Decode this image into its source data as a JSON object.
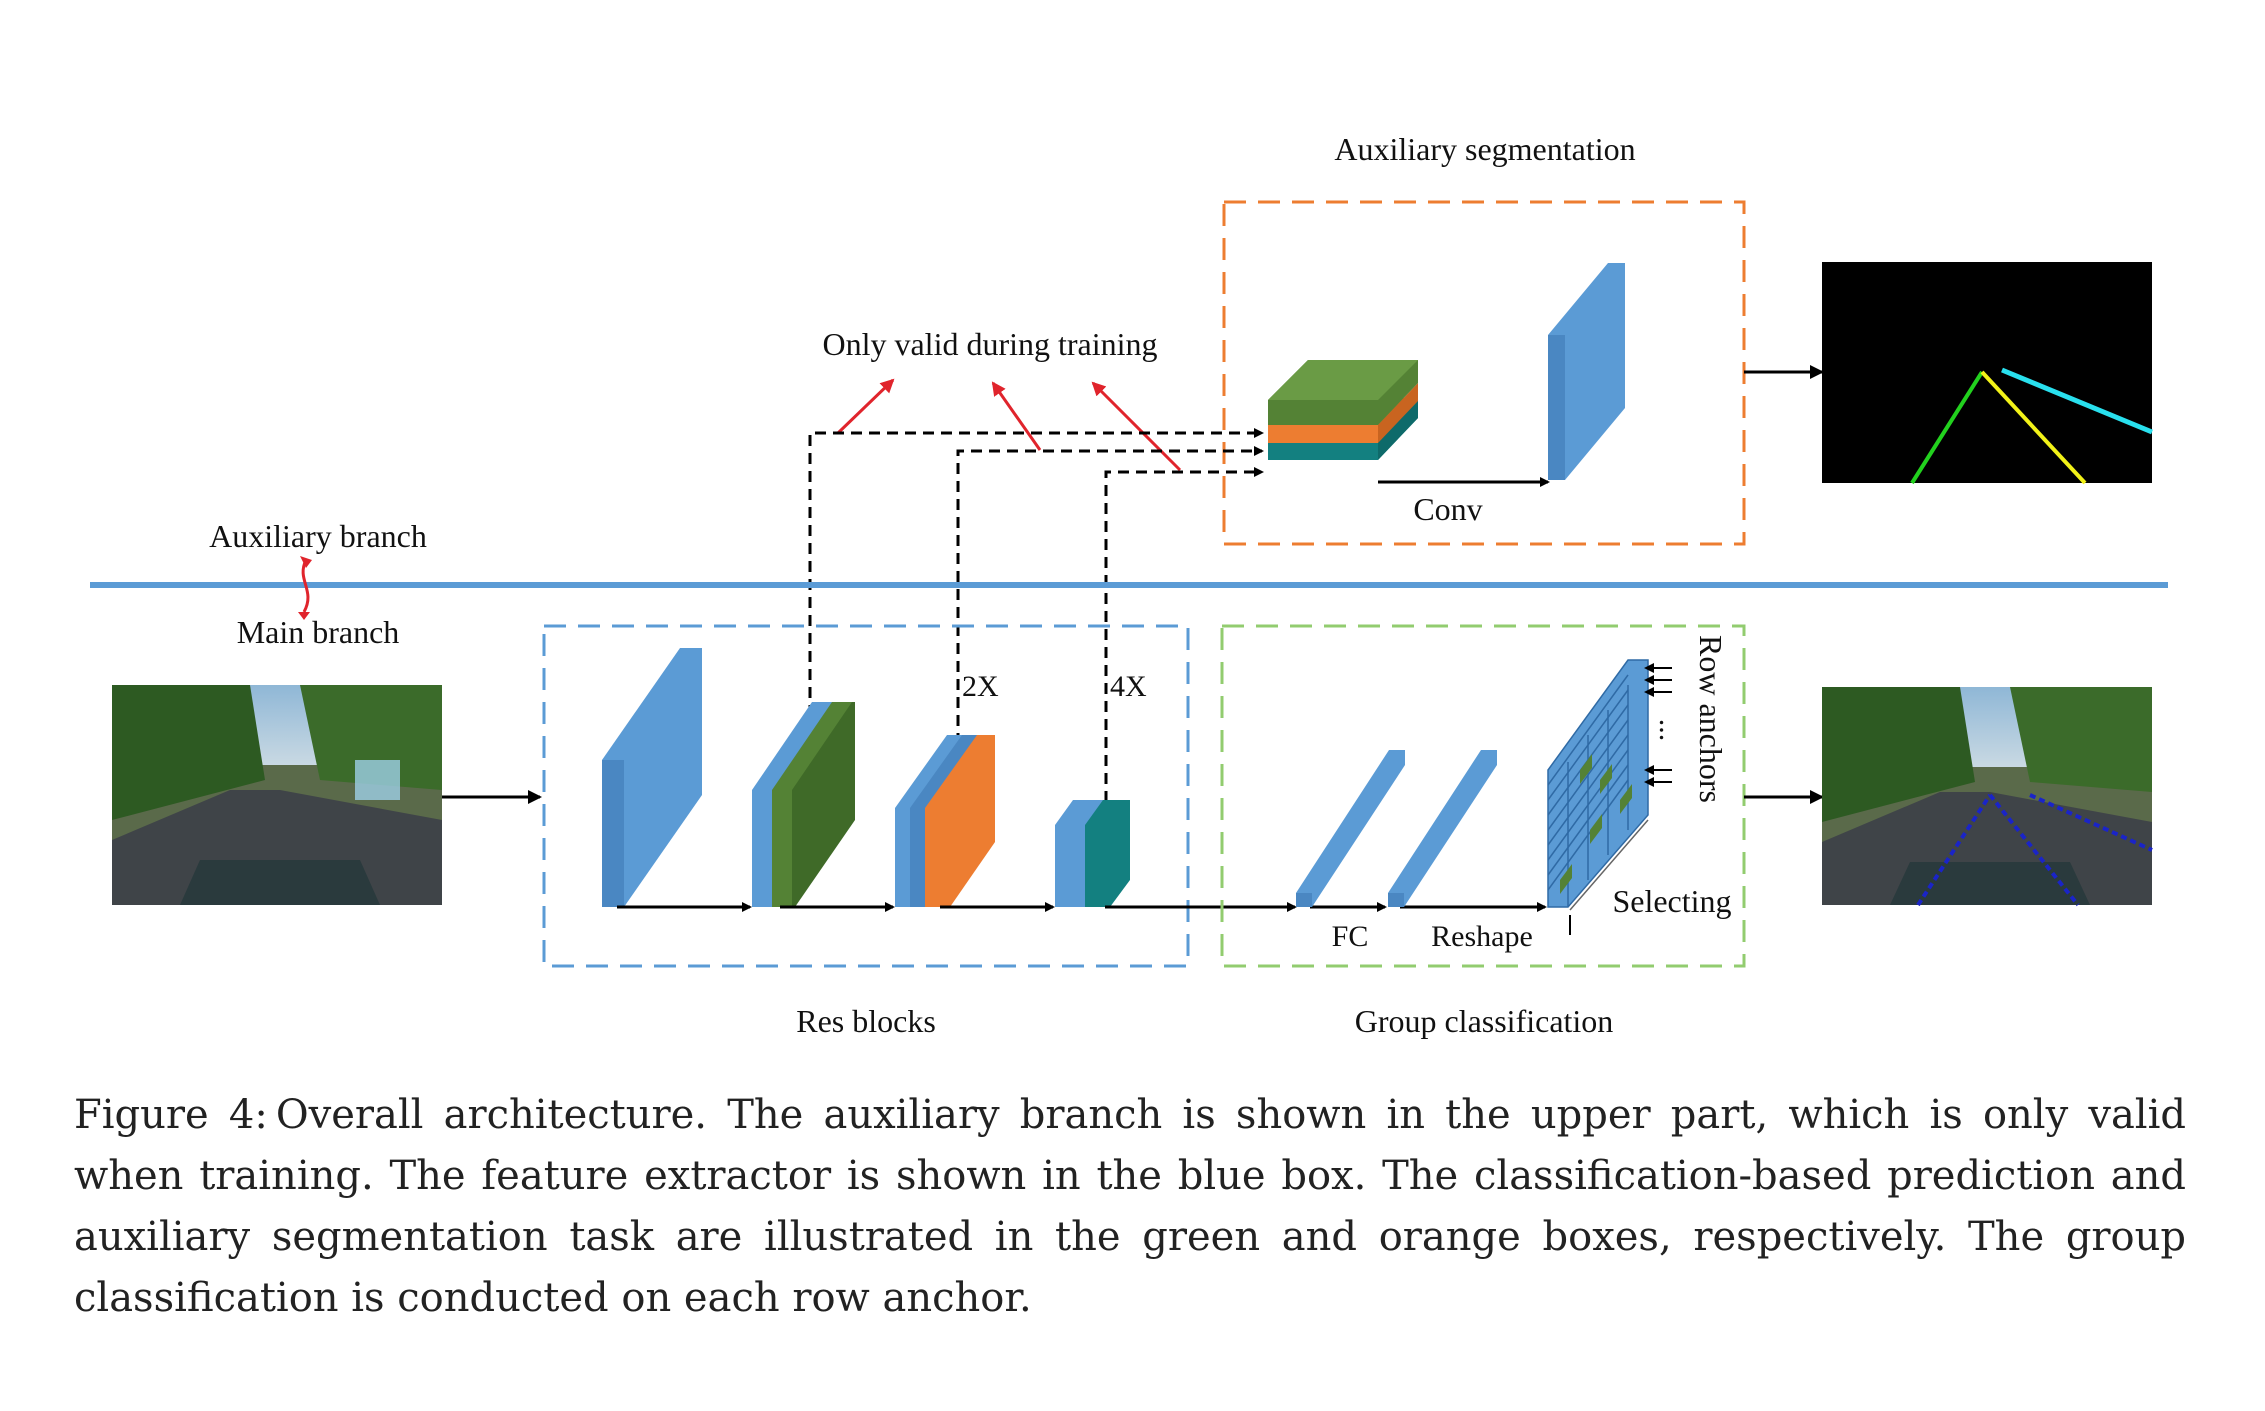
{
  "figure": {
    "labels": {
      "auxiliary_segmentation": "Auxiliary segmentation",
      "only_valid_training": "Only valid during training",
      "auxiliary_branch": "Auxiliary branch",
      "main_branch": "Main branch",
      "conv": "Conv",
      "res_blocks": "Res blocks",
      "group_classification": "Group classification",
      "fc": "FC",
      "reshape": "Reshape",
      "selecting": "Selecting",
      "row_anchors": "Row anchors",
      "ellipsis": "...",
      "scale_2x": "2X",
      "scale_4x": "4X"
    },
    "colors": {
      "block_blue": "#5b9bd5",
      "block_green": "#548235",
      "block_orange": "#ed7d31",
      "block_teal": "#138080",
      "box_blue": "#5b9bd5",
      "box_green": "#92cc6f",
      "box_orange": "#ed7d31",
      "divider": "#5b9bd5",
      "arrow_red": "#e0242c",
      "lane_green": "#22d11e",
      "lane_yellow": "#f2f218",
      "lane_cyan": "#29e0ee",
      "lane_dots": "#1a24c8"
    }
  },
  "caption": {
    "label": "Figure 4:",
    "text": "Overall architecture. The auxiliary branch is shown in the upper part, which is only valid when training. The feature extractor is shown in the blue box. The classification-based prediction and auxiliary segmentation task are illustrated in the green and orange boxes, respectively. The group classification is conducted on each row anchor."
  }
}
